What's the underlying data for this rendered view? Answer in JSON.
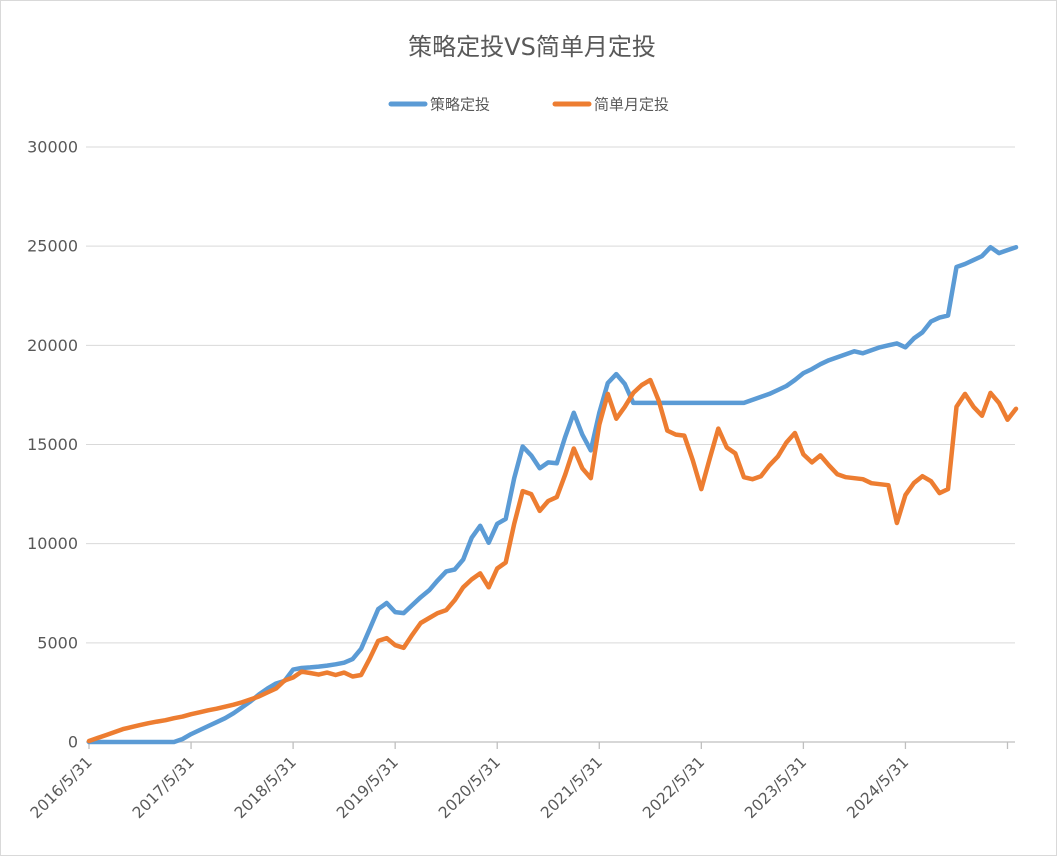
{
  "chart": {
    "title": "策略定投VS简单月定投",
    "background_color": "#FFFFFF",
    "border_color": "#D9D9D9"
  },
  "chart_data": {
    "type": "line",
    "title": "策略定投VS简单月定投",
    "legend_position": "top",
    "grid": "horizontal",
    "text_color": "#595959",
    "grid_color": "#D9D9D9",
    "axis_color": "#BFBFBF",
    "y_axis": {
      "min": 0,
      "max": 30000,
      "tick_interval": 5000,
      "tick_labels": [
        "0",
        "5000",
        "10000",
        "15000",
        "20000",
        "25000",
        "30000"
      ]
    },
    "x_axis": {
      "label_rotation_deg": 45,
      "tick_every": 12,
      "tick_label_indices": [
        0,
        12,
        24,
        36,
        48,
        60,
        72,
        84,
        96
      ],
      "tick_labels": [
        "2016/5/31",
        "2017/5/31",
        "2018/5/31",
        "2019/5/31",
        "2020/5/31",
        "2021/5/31",
        "2022/5/31",
        "2023/5/31",
        "2024/5/31"
      ]
    },
    "categories": [
      "2016/5/31",
      "2016/6/30",
      "2016/7/31",
      "2016/8/31",
      "2016/9/30",
      "2016/10/31",
      "2016/11/30",
      "2016/12/31",
      "2017/1/31",
      "2017/2/28",
      "2017/3/31",
      "2017/4/30",
      "2017/5/31",
      "2017/6/30",
      "2017/7/31",
      "2017/8/31",
      "2017/9/30",
      "2017/10/31",
      "2017/11/30",
      "2017/12/31",
      "2018/1/31",
      "2018/2/28",
      "2018/3/31",
      "2018/4/30",
      "2018/5/31",
      "2018/6/30",
      "2018/7/31",
      "2018/8/31",
      "2018/9/30",
      "2018/10/31",
      "2018/11/30",
      "2018/12/31",
      "2019/1/31",
      "2019/2/28",
      "2019/3/31",
      "2019/4/30",
      "2019/5/31",
      "2019/6/30",
      "2019/7/31",
      "2019/8/31",
      "2019/9/30",
      "2019/10/31",
      "2019/11/30",
      "2019/12/31",
      "2020/1/31",
      "2020/2/29",
      "2020/3/31",
      "2020/4/30",
      "2020/5/31",
      "2020/6/30",
      "2020/7/31",
      "2020/8/31",
      "2020/9/30",
      "2020/10/31",
      "2020/11/30",
      "2020/12/31",
      "2021/1/31",
      "2021/2/28",
      "2021/3/31",
      "2021/4/30",
      "2021/5/31",
      "2021/6/30",
      "2021/7/31",
      "2021/8/31",
      "2021/9/30",
      "2021/10/31",
      "2021/11/30",
      "2021/12/31",
      "2022/1/31",
      "2022/2/28",
      "2022/3/31",
      "2022/4/30",
      "2022/5/31",
      "2022/6/30",
      "2022/7/31",
      "2022/8/31",
      "2022/9/30",
      "2022/10/31",
      "2022/11/30",
      "2022/12/31",
      "2023/1/31",
      "2023/2/28",
      "2023/3/31",
      "2023/4/30",
      "2023/5/31",
      "2023/6/30",
      "2023/7/31",
      "2023/8/31",
      "2023/9/30",
      "2023/10/31",
      "2023/11/30",
      "2023/12/31",
      "2024/1/31",
      "2024/2/29",
      "2024/3/31",
      "2024/4/30",
      "2024/5/31",
      "2024/6/30",
      "2024/7/31",
      "2024/8/31",
      "2024/9/30",
      "2024/10/31",
      "2024/11/30",
      "2024/12/31",
      "2025/1/31",
      "2025/2/28",
      "2025/3/31",
      "2025/4/30",
      "2025/5/31",
      "2025/6/30"
    ],
    "series": [
      {
        "name": "策略定投",
        "color": "#5B9BD5",
        "values": [
          0,
          0,
          0,
          0,
          0,
          0,
          0,
          0,
          0,
          0,
          0,
          150,
          400,
          600,
          800,
          1000,
          1200,
          1450,
          1750,
          2050,
          2400,
          2700,
          2950,
          3080,
          3650,
          3730,
          3760,
          3800,
          3850,
          3920,
          4000,
          4180,
          4700,
          5700,
          6700,
          7010,
          6550,
          6500,
          6900,
          7300,
          7650,
          8150,
          8600,
          8700,
          9200,
          10300,
          10900,
          10050,
          11000,
          11250,
          13300,
          14900,
          14450,
          13800,
          14100,
          14050,
          15400,
          16600,
          15500,
          14700,
          16600,
          18100,
          18550,
          18050,
          17100,
          17100,
          17100,
          17100,
          17100,
          17100,
          17100,
          17100,
          17100,
          17100,
          17100,
          17100,
          17100,
          17100,
          17250,
          17400,
          17550,
          17750,
          17950,
          18250,
          18600,
          18800,
          19050,
          19250,
          19400,
          19550,
          19700,
          19600,
          19750,
          19900,
          20000,
          20100,
          19900,
          20350,
          20650,
          21200,
          21400,
          21500,
          23950,
          24100,
          24300,
          24500,
          24950,
          24650,
          24800,
          24950
        ]
      },
      {
        "name": "简单月定投",
        "color": "#ED7D31",
        "values": [
          50,
          200,
          350,
          500,
          650,
          750,
          850,
          950,
          1030,
          1100,
          1200,
          1280,
          1400,
          1500,
          1600,
          1680,
          1780,
          1880,
          2000,
          2150,
          2300,
          2500,
          2700,
          3100,
          3250,
          3550,
          3480,
          3400,
          3500,
          3380,
          3500,
          3300,
          3380,
          4200,
          5100,
          5240,
          4880,
          4750,
          5400,
          6000,
          6250,
          6500,
          6650,
          7150,
          7800,
          8200,
          8500,
          7800,
          8750,
          9050,
          11000,
          12650,
          12500,
          11650,
          12150,
          12350,
          13500,
          14800,
          13800,
          13300,
          16000,
          17550,
          16300,
          16900,
          17600,
          18000,
          18250,
          17200,
          15700,
          15500,
          15450,
          14200,
          12750,
          14300,
          15800,
          14850,
          14550,
          13350,
          13250,
          13400,
          13950,
          14400,
          15100,
          15580,
          14500,
          14100,
          14450,
          13950,
          13500,
          13350,
          13300,
          13250,
          13050,
          13000,
          12950,
          11040,
          12450,
          13060,
          13400,
          13150,
          12550,
          12750,
          16900,
          17550,
          16900,
          16450,
          17600,
          17100,
          16250,
          16800
        ]
      }
    ]
  }
}
